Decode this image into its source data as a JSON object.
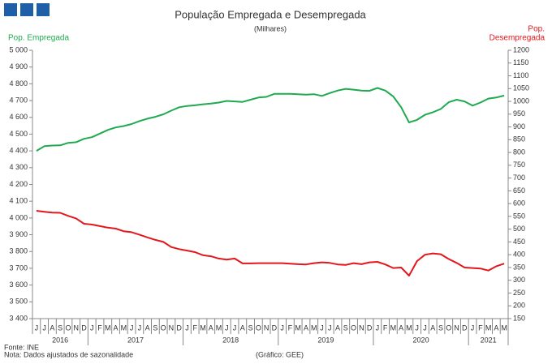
{
  "chart_data": {
    "type": "line",
    "title": "População Empregada e Desempregada",
    "subtitle": "(Milhares)",
    "y_label": "Pop. Empregada",
    "y2_label_lines": [
      "Pop.",
      "Desempregada"
    ],
    "categories": [
      "J",
      "J",
      "A",
      "S",
      "O",
      "N",
      "D",
      "J",
      "F",
      "M",
      "A",
      "M",
      "J",
      "J",
      "A",
      "S",
      "O",
      "N",
      "D",
      "J",
      "F",
      "M",
      "A",
      "M",
      "J",
      "J",
      "A",
      "S",
      "O",
      "N",
      "D",
      "J",
      "F",
      "M",
      "A",
      "M",
      "J",
      "J",
      "A",
      "S",
      "O",
      "N",
      "D",
      "J",
      "F",
      "M",
      "A",
      "M",
      "J",
      "J",
      "A",
      "S",
      "O",
      "N",
      "D",
      "J",
      "F",
      "M",
      "A",
      "M"
    ],
    "year_labels": [
      "2016",
      "2017",
      "2018",
      "2019",
      "2020",
      "2021"
    ],
    "series": [
      {
        "name": "Pop. Empregada",
        "color": "#1faa4f",
        "axis": "y",
        "values": [
          4400,
          4428,
          4432,
          4433,
          4448,
          4452,
          4472,
          4482,
          4503,
          4525,
          4540,
          4548,
          4560,
          4578,
          4592,
          4603,
          4618,
          4640,
          4660,
          4668,
          4672,
          4678,
          4682,
          4688,
          4698,
          4695,
          4692,
          4705,
          4718,
          4722,
          4740,
          4740,
          4740,
          4738,
          4735,
          4738,
          4728,
          4745,
          4760,
          4770,
          4765,
          4760,
          4758,
          4775,
          4760,
          4725,
          4660,
          4570,
          4585,
          4615,
          4630,
          4650,
          4690,
          4705,
          4695,
          4670,
          4688,
          4712,
          4718,
          4730
        ]
      },
      {
        "name": "Pop. Desempregada",
        "color": "#e3161b",
        "axis": "y2",
        "values": [
          572,
          568,
          565,
          564,
          552,
          542,
          521,
          518,
          512,
          506,
          502,
          492,
          488,
          478,
          468,
          458,
          450,
          430,
          422,
          416,
          410,
          398,
          394,
          385,
          381,
          385,
          366,
          366,
          367,
          367,
          367,
          367,
          365,
          363,
          362,
          367,
          370,
          368,
          362,
          360,
          367,
          363,
          370,
          372,
          362,
          348,
          350,
          318,
          375,
          400,
          405,
          402,
          383,
          368,
          350,
          348,
          346,
          338,
          355,
          365
        ]
      }
    ],
    "ylim": [
      3400,
      5000
    ],
    "yticks": [
      {
        "value": 3400,
        "label": "3 400"
      },
      {
        "value": 3500,
        "label": "3 500"
      },
      {
        "value": 3600,
        "label": "3 600"
      },
      {
        "value": 3700,
        "label": "3 700"
      },
      {
        "value": 3800,
        "label": "3 800"
      },
      {
        "value": 3900,
        "label": "3 900"
      },
      {
        "value": 4000,
        "label": "4 000"
      },
      {
        "value": 4100,
        "label": "4 100"
      },
      {
        "value": 4200,
        "label": "4 200"
      },
      {
        "value": 4300,
        "label": "4 300"
      },
      {
        "value": 4400,
        "label": "4 400"
      },
      {
        "value": 4500,
        "label": "4 500"
      },
      {
        "value": 4600,
        "label": "4 600"
      },
      {
        "value": 4700,
        "label": "4 700"
      },
      {
        "value": 4800,
        "label": "4 800"
      },
      {
        "value": 4900,
        "label": "4 900"
      },
      {
        "value": 5000,
        "label": "5 000"
      }
    ],
    "y2lim": [
      150,
      1200
    ],
    "y2ticks": [
      150,
      200,
      250,
      300,
      350,
      400,
      450,
      500,
      550,
      600,
      650,
      700,
      750,
      800,
      850,
      900,
      950,
      1000,
      1050,
      1100,
      1150,
      1200
    ],
    "grid": false,
    "source": "Fonte: INE",
    "note": "Nota: Dados ajustados de sazonalidade",
    "credit": "(Gráfico: GEE)"
  }
}
